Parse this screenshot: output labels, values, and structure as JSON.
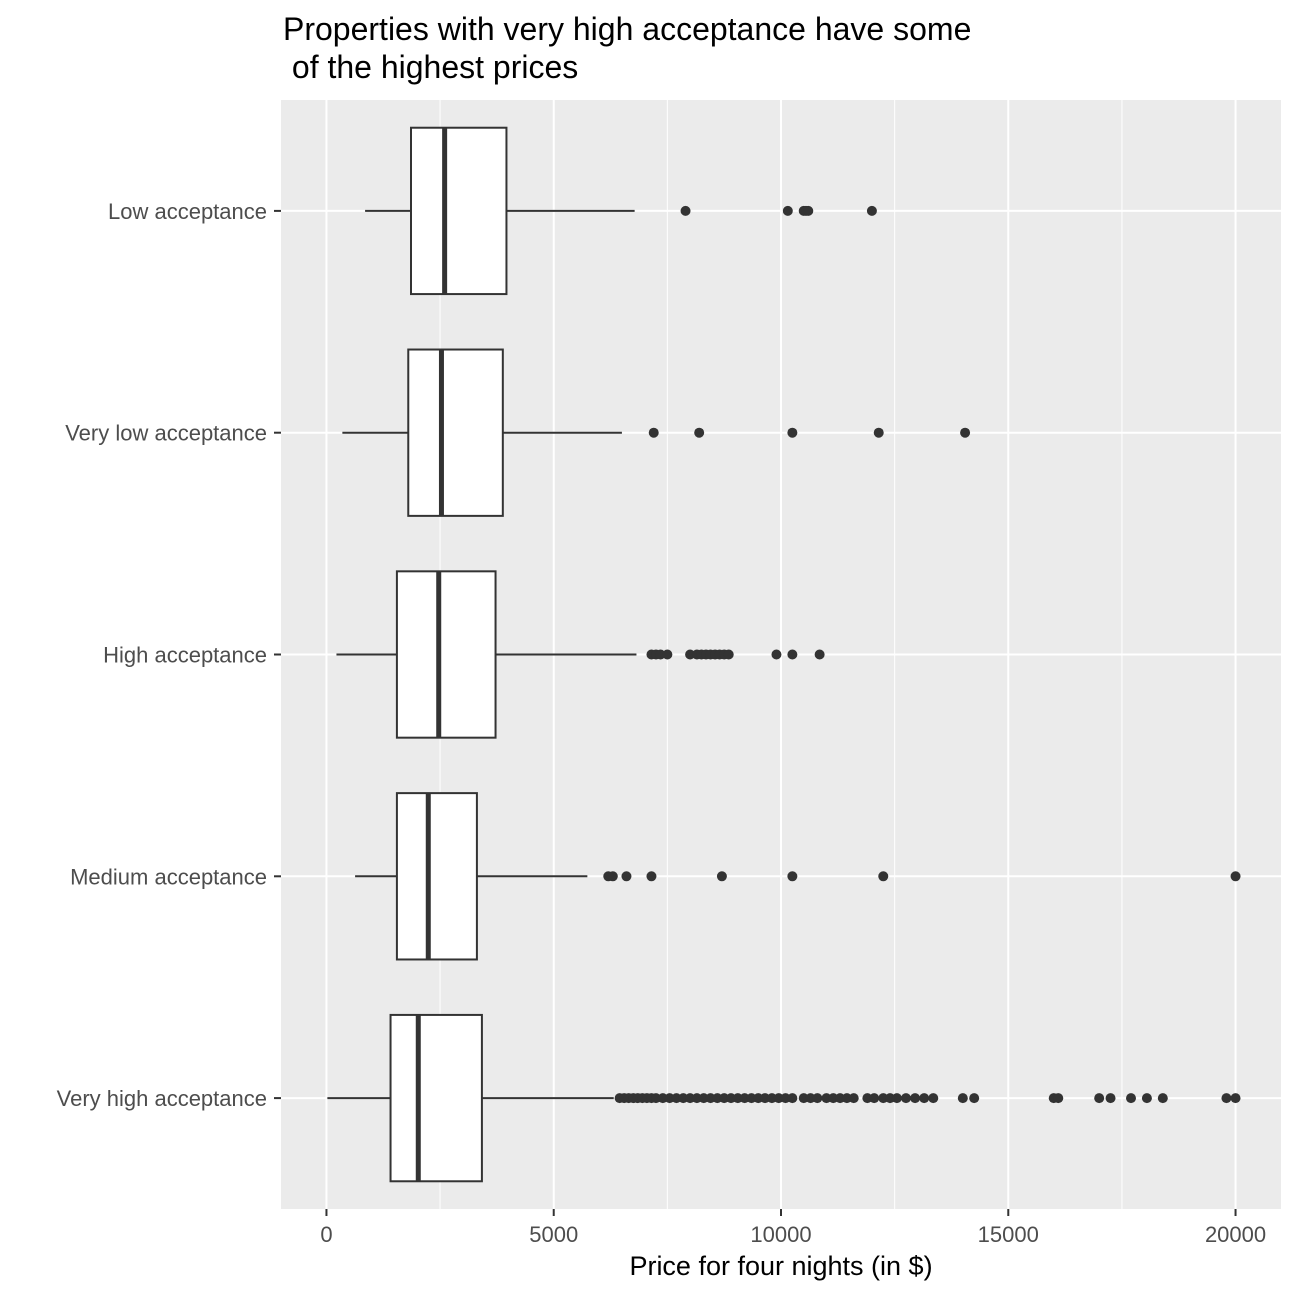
{
  "chart_data": {
    "type": "boxplot",
    "orientation": "horizontal",
    "title_lines": [
      "Properties with very high acceptance have some",
      " of the highest prices"
    ],
    "xlabel": "Price for four nights (in $)",
    "ylabel": "",
    "xlim": [
      -1000,
      21000
    ],
    "xticks": [
      0,
      5000,
      10000,
      15000,
      20000
    ],
    "xtick_labels": [
      "0",
      "5000",
      "10000",
      "15000",
      "20000"
    ],
    "grid": true,
    "legend": "none",
    "colors": {
      "panel": "#ebebeb",
      "grid": "#ffffff",
      "box_fill": "#ffffff",
      "box_stroke": "#333333",
      "outlier": "#333333"
    },
    "categories": [
      "Low acceptance",
      "Very low acceptance",
      "High acceptance",
      "Medium acceptance",
      "Very high acceptance"
    ],
    "boxes": [
      {
        "category": "Low acceptance",
        "whisker_low": 850,
        "q1": 1860,
        "median": 2600,
        "q3": 3960,
        "whisker_high": 6780,
        "outliers": [
          7900,
          10150,
          10500,
          10550,
          10600,
          12000
        ]
      },
      {
        "category": "Very low acceptance",
        "whisker_low": 350,
        "q1": 1800,
        "median": 2530,
        "q3": 3880,
        "whisker_high": 6500,
        "outliers": [
          7200,
          8200,
          10250,
          12150,
          14050
        ]
      },
      {
        "category": "High acceptance",
        "whisker_low": 220,
        "q1": 1550,
        "median": 2470,
        "q3": 3720,
        "whisker_high": 6820,
        "outliers": [
          7150,
          7250,
          7350,
          7500,
          8000,
          8150,
          8250,
          8350,
          8450,
          8550,
          8650,
          8750,
          8850,
          9900,
          10250,
          10850
        ]
      },
      {
        "category": "Medium acceptance",
        "whisker_low": 630,
        "q1": 1550,
        "median": 2240,
        "q3": 3310,
        "whisker_high": 5740,
        "outliers": [
          6200,
          6300,
          6600,
          7150,
          8700,
          10250,
          12250,
          20000
        ]
      },
      {
        "category": "Very high acceptance",
        "whisker_low": 20,
        "q1": 1410,
        "median": 2020,
        "q3": 3420,
        "whisker_high": 6320,
        "outliers": [
          6450,
          6550,
          6650,
          6750,
          6850,
          6950,
          7050,
          7150,
          7250,
          7400,
          7550,
          7700,
          7850,
          8000,
          8150,
          8300,
          8450,
          8600,
          8750,
          8900,
          9050,
          9200,
          9350,
          9500,
          9650,
          9800,
          9950,
          10100,
          10250,
          10500,
          10650,
          10800,
          11000,
          11150,
          11300,
          11450,
          11600,
          11900,
          12050,
          12250,
          12400,
          12550,
          12750,
          12950,
          13150,
          13350,
          14000,
          14250,
          16000,
          16100,
          17000,
          17250,
          17700,
          18050,
          18400,
          19800,
          20000
        ]
      }
    ]
  }
}
